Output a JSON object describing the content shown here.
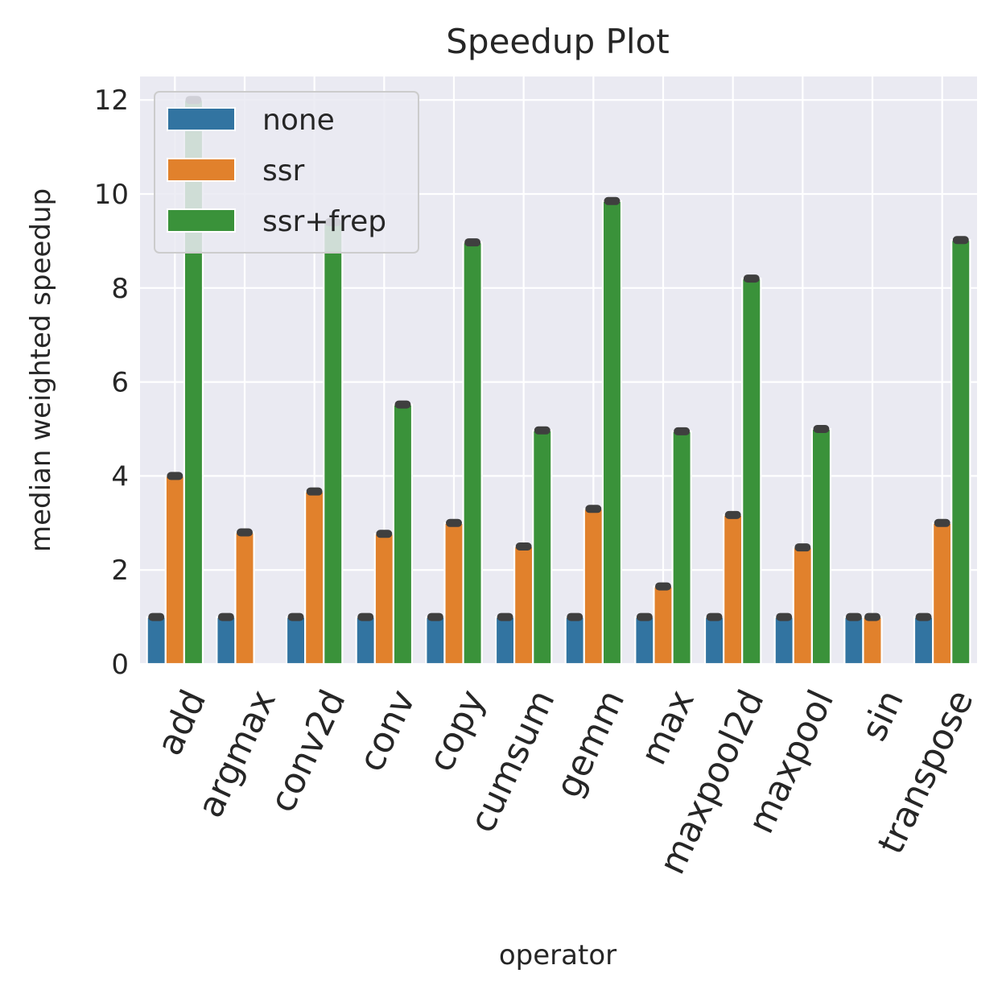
{
  "chart_data": {
    "type": "bar",
    "title": "Speedup Plot",
    "xlabel": "operator",
    "ylabel": "median weighted speedup",
    "categories": [
      "add",
      "argmax",
      "conv2d",
      "conv",
      "copy",
      "cumsum",
      "gemm",
      "max",
      "maxpool2d",
      "maxpool",
      "sin",
      "transpose"
    ],
    "series": [
      {
        "name": "none",
        "color": "#3274a1",
        "values": [
          1,
          1,
          1,
          1,
          1,
          1,
          1,
          1,
          1,
          1,
          1,
          1
        ]
      },
      {
        "name": "ssr",
        "color": "#e1812c",
        "values": [
          4.0,
          2.8,
          3.67,
          2.77,
          3.0,
          2.5,
          3.3,
          1.65,
          3.17,
          2.48,
          1.0,
          3.0
        ]
      },
      {
        "name": "ssr+frep",
        "color": "#3a923a",
        "values": [
          12.0,
          null,
          9.4,
          5.52,
          8.97,
          4.97,
          9.85,
          4.95,
          8.2,
          5.0,
          null,
          9.02
        ]
      }
    ],
    "ylim": [
      0,
      12.5
    ],
    "yticks": [
      0,
      2,
      4,
      6,
      8,
      10,
      12
    ],
    "grid": true,
    "legend": "top-left",
    "background_color": "#eaeaf2",
    "errorbar_color": "#3f3f3f"
  }
}
